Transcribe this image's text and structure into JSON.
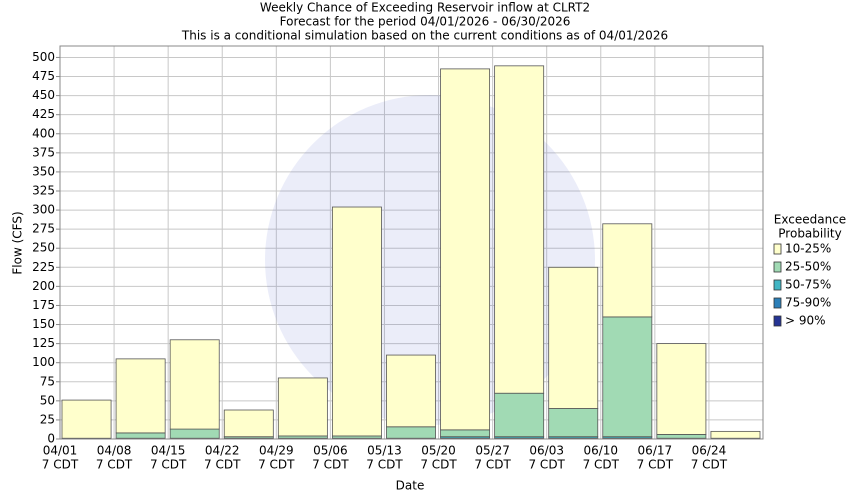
{
  "chart_data": {
    "type": "stacked_bar",
    "title": [
      "Weekly Chance of Exceeding Reservoir inflow at CLRT2",
      "Forecast for the period 04/01/2026 - 06/30/2026",
      "This is a conditional simulation based on the current conditions as of 04/01/2026"
    ],
    "x_label": "Date",
    "y_label": "Flow (CFS)",
    "categories": [
      "04/01",
      "04/08",
      "04/15",
      "04/22",
      "04/29",
      "05/06",
      "05/13",
      "05/20",
      "05/27",
      "06/03",
      "06/10",
      "06/17",
      "06/24"
    ],
    "category_time": "7 CDT",
    "legend_title": [
      "Exceedance",
      "Probability"
    ],
    "series": [
      {
        "name": "10-25%",
        "color": "#ffffcc",
        "values": [
          50,
          97,
          117,
          35,
          76,
          300,
          94,
          473,
          429,
          185,
          122,
          119,
          9
        ]
      },
      {
        "name": "25-50%",
        "color": "#a1dab4",
        "values": [
          1,
          7,
          12,
          2,
          3,
          3,
          15,
          9,
          57,
          37,
          157,
          5,
          1
        ]
      },
      {
        "name": "50-75%",
        "color": "#41b6c4",
        "values": [
          0,
          1,
          1,
          1,
          1,
          1,
          1,
          2,
          2,
          2,
          2,
          1,
          0
        ]
      },
      {
        "name": "75-90%",
        "color": "#2c7fb8",
        "values": [
          0,
          0,
          0,
          0,
          0,
          0,
          0,
          1,
          1,
          1,
          1,
          0,
          0
        ]
      },
      {
        "name": "> 90%",
        "color": "#253494",
        "values": [
          0,
          0,
          0,
          0,
          0,
          0,
          0,
          0,
          0,
          0,
          0,
          0,
          0
        ]
      }
    ],
    "ylim": [
      0,
      515
    ],
    "yticks": [
      0,
      25,
      50,
      75,
      100,
      125,
      150,
      175,
      200,
      225,
      250,
      275,
      300,
      325,
      350,
      375,
      400,
      425,
      450,
      475,
      500
    ],
    "grid": true
  }
}
